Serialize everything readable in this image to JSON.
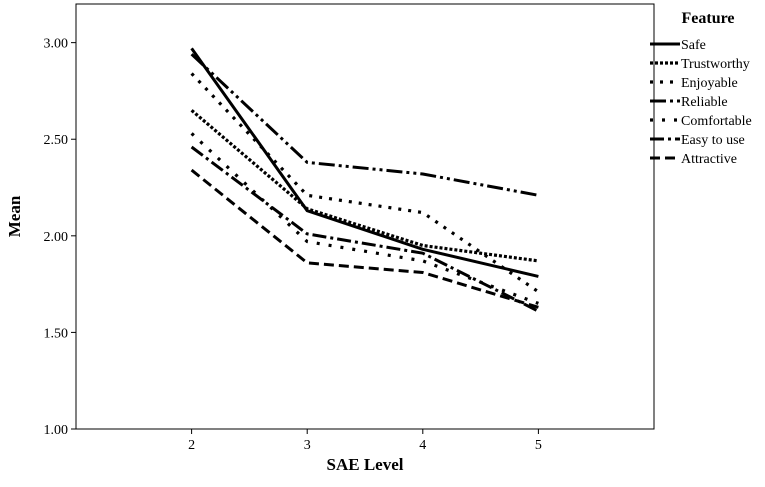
{
  "chart_data": {
    "type": "line",
    "xlabel": "SAE Level",
    "ylabel": "Mean",
    "x": [
      2,
      3,
      4,
      5
    ],
    "xlim": [
      1.0,
      6.0
    ],
    "ylim": [
      1.0,
      3.2
    ],
    "yticks": [
      1.0,
      1.5,
      2.0,
      2.5,
      3.0
    ],
    "ytick_labels": [
      "1.00",
      "1.50",
      "2.00",
      "2.50",
      "3.00"
    ],
    "xtick_labels": [
      "2",
      "3",
      "4",
      "5"
    ],
    "grid": false,
    "legend": {
      "title": "Feature",
      "position": "top-right"
    },
    "series": [
      {
        "name": "Safe",
        "values": [
          2.97,
          2.13,
          1.93,
          1.79
        ]
      },
      {
        "name": "Trustworthy",
        "values": [
          2.65,
          2.14,
          1.95,
          1.87
        ]
      },
      {
        "name": "Enjoyable",
        "values": [
          2.84,
          2.21,
          2.12,
          1.71
        ]
      },
      {
        "name": "Reliable",
        "values": [
          2.94,
          2.38,
          2.32,
          2.21
        ]
      },
      {
        "name": "Comfortable",
        "values": [
          2.53,
          1.97,
          1.87,
          1.65
        ]
      },
      {
        "name": "Easy to use",
        "values": [
          2.46,
          2.01,
          1.91,
          1.61
        ]
      },
      {
        "name": "Attractive",
        "values": [
          2.34,
          1.86,
          1.81,
          1.63
        ]
      }
    ]
  }
}
